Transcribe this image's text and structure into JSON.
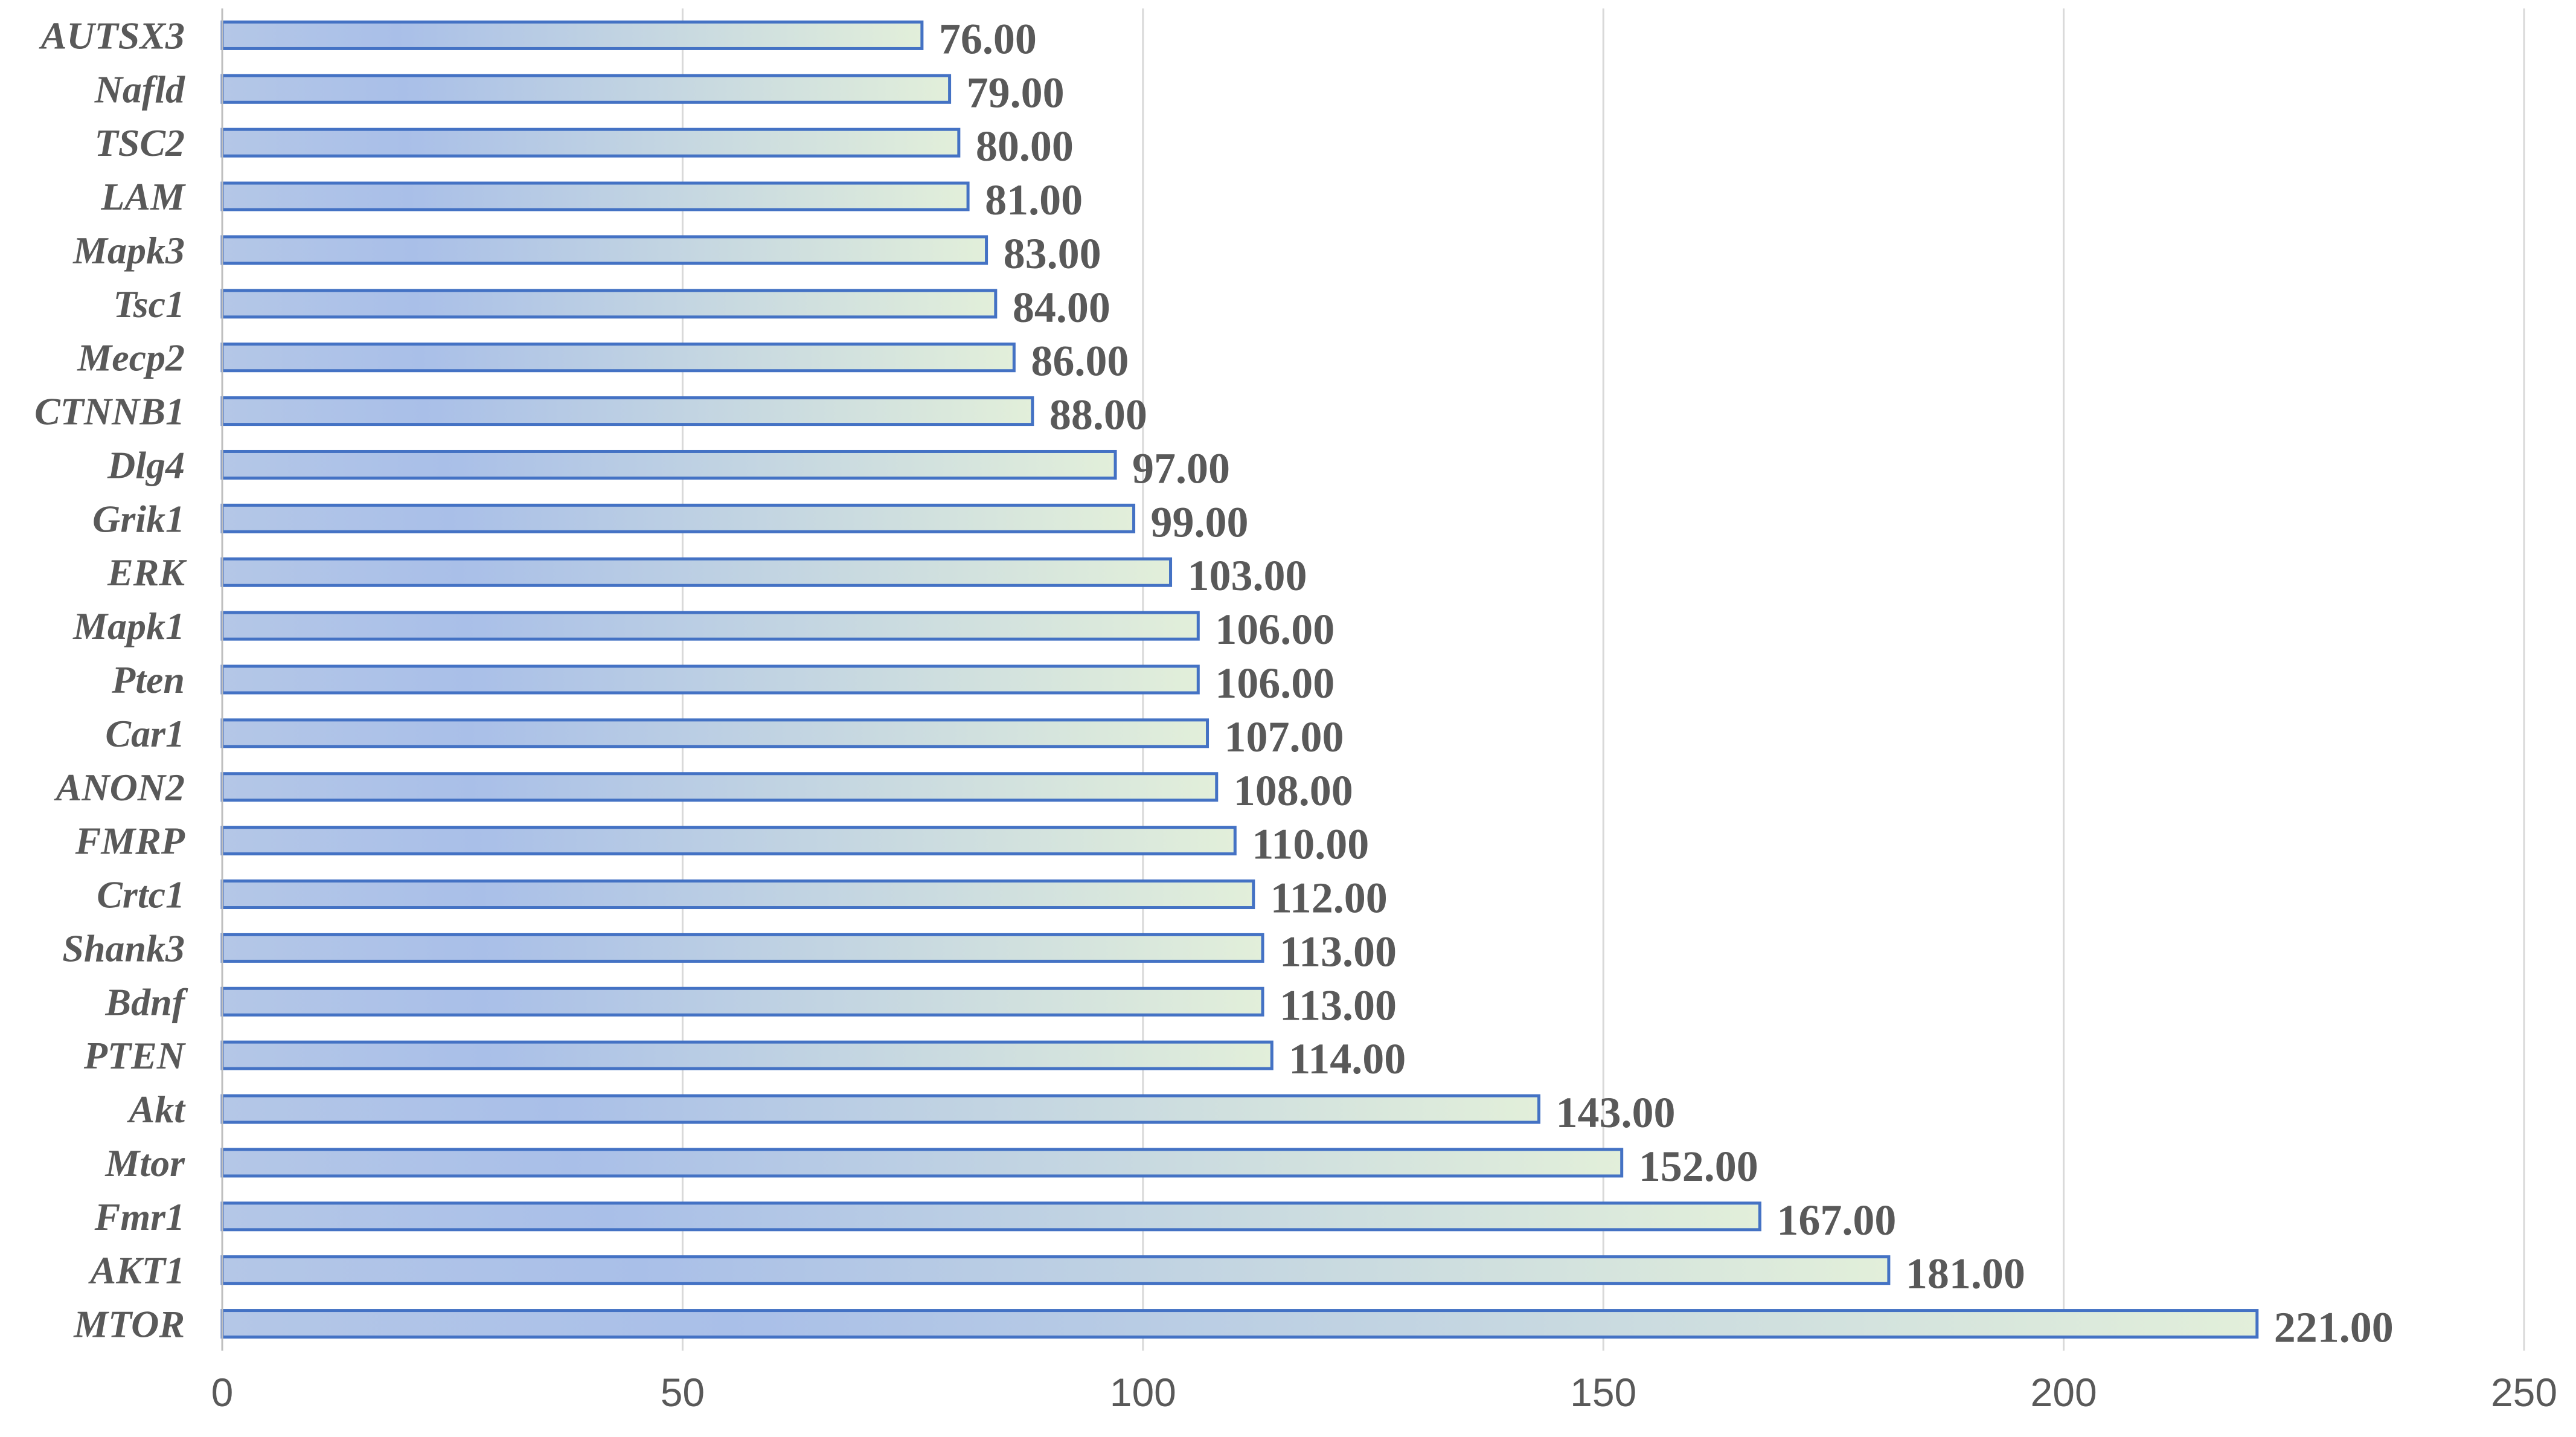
{
  "chart_data": {
    "type": "bar",
    "orientation": "horizontal",
    "title": "",
    "xlabel": "",
    "ylabel": "",
    "xlim": [
      0,
      250
    ],
    "x_ticks": [
      "0",
      "50",
      "100",
      "150",
      "200",
      "250"
    ],
    "grid": true,
    "legend": "none",
    "bar_fill_gradient": [
      "#b4c7e7",
      "#a9bfe8",
      "#e2efda"
    ],
    "bar_border_color": "#4472c4",
    "label_color": "#595959",
    "categories": [
      "AUTSX3",
      "Nafld",
      "TSC2",
      "LAM",
      "Mapk3",
      "Tsc1",
      "Mecp2",
      "CTNNB1",
      "Dlg4",
      "Grik1",
      "ERK",
      "Mapk1",
      "Pten",
      "Car1",
      "ANON2",
      "FMRP",
      "Crtc1",
      "Shank3",
      "Bdnf",
      "PTEN",
      "Akt",
      "Mtor",
      "Fmr1",
      "AKT1",
      "MTOR"
    ],
    "values": [
      76,
      79,
      80,
      81,
      83,
      84,
      86,
      88,
      97,
      99,
      103,
      106,
      106,
      107,
      108,
      110,
      112,
      113,
      113,
      114,
      143,
      152,
      167,
      181,
      221
    ],
    "value_labels": [
      "76.00",
      "79.00",
      "80.00",
      "81.00",
      "83.00",
      "84.00",
      "86.00",
      "88.00",
      "97.00",
      "99.00",
      "103.00",
      "106.00",
      "106.00",
      "107.00",
      "108.00",
      "110.00",
      "112.00",
      "113.00",
      "113.00",
      "114.00",
      "143.00",
      "152.00",
      "167.00",
      "181.00",
      "221.00"
    ]
  }
}
